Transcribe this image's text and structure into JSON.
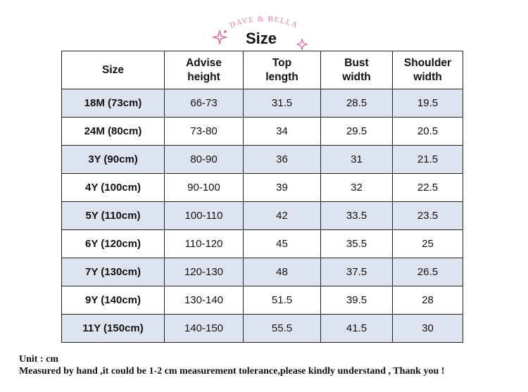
{
  "header": {
    "brand": "DAVE & BELLA",
    "title": "Size"
  },
  "table": {
    "columns": [
      "Size",
      "Advise\nheight",
      "Top\nlength",
      "Bust\nwidth",
      "Shoulder\nwidth"
    ],
    "rows": [
      [
        "18M (73cm)",
        "66-73",
        "31.5",
        "28.5",
        "19.5"
      ],
      [
        "24M (80cm)",
        "73-80",
        "34",
        "29.5",
        "20.5"
      ],
      [
        "3Y (90cm)",
        "80-90",
        "36",
        "31",
        "21.5"
      ],
      [
        "4Y (100cm)",
        "90-100",
        "39",
        "32",
        "22.5"
      ],
      [
        "5Y (110cm)",
        "100-110",
        "42",
        "33.5",
        "23.5"
      ],
      [
        "6Y (120cm)",
        "110-120",
        "45",
        "35.5",
        "25"
      ],
      [
        "7Y (130cm)",
        "120-130",
        "48",
        "37.5",
        "26.5"
      ],
      [
        "9Y (140cm)",
        "130-140",
        "51.5",
        "39.5",
        "28"
      ],
      [
        "11Y (150cm)",
        "140-150",
        "55.5",
        "41.5",
        "30"
      ]
    ]
  },
  "footer": {
    "unit": "Unit : cm",
    "note": "Measured by hand ,it could be 1-2 cm measurement tolerance,please kindly understand , Thank you !"
  }
}
